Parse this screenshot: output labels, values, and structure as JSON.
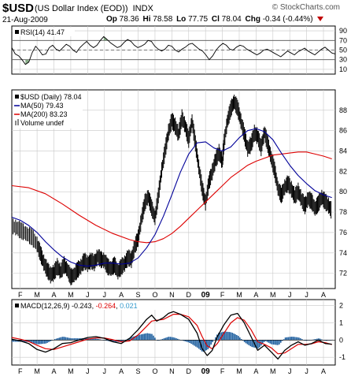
{
  "header": {
    "symbol": "$USD",
    "description": "(US Dollar Index (EOD))",
    "exchange": "INDX",
    "date": "21-Aug-2009",
    "brand": "© StockCharts.com",
    "open_label": "Op",
    "open": "78.36",
    "high_label": "Hi",
    "high": "78.58",
    "low_label": "Lo",
    "low": "77.75",
    "close_label": "Cl",
    "close": "78.04",
    "change_label": "Chg",
    "change": "-0.34 (-0.44%)"
  },
  "colors": {
    "price": "#000000",
    "ma50": "#000099",
    "ma200": "#dd0000",
    "macd": "#000000",
    "signal": "#dd0000",
    "histogram": "#2060a0",
    "rsi_fill": "#6a9a6a",
    "grid": "#c8c8c8"
  },
  "chart_data": [
    {
      "type": "line",
      "name": "RSI panel",
      "legend": "RSI(14) 41.47",
      "yticks": [
        10,
        30,
        50,
        70,
        90
      ],
      "ylim": [
        0,
        100
      ],
      "reference_lines": [
        30,
        50,
        70
      ],
      "values": [
        55,
        42,
        38,
        30,
        20,
        25,
        45,
        58,
        50,
        40,
        42,
        55,
        60,
        52,
        48,
        55,
        62,
        58,
        50,
        45,
        55,
        62,
        68,
        60,
        55,
        60,
        70,
        78,
        72,
        65,
        60,
        55,
        58,
        66,
        72,
        68,
        60,
        55,
        58,
        62,
        70,
        68,
        58,
        52,
        48,
        52,
        60,
        58,
        50,
        46,
        52,
        56,
        62,
        64,
        58,
        52,
        48,
        40,
        30,
        38,
        50,
        58,
        64,
        60,
        52,
        50,
        56,
        60,
        58,
        52,
        48,
        44,
        40,
        44,
        50,
        52,
        48,
        44,
        40,
        36,
        42,
        48,
        44,
        40,
        46,
        50,
        54,
        48,
        44,
        40,
        46,
        52,
        56,
        50,
        44,
        42
      ]
    },
    {
      "type": "line",
      "name": "Price panel",
      "legend_price": "$USD (Daily) 78.04",
      "legend_ma50": "MA(50) 79.43",
      "legend_ma200": "MA(200) 83.23",
      "legend_volume": "Volume undef",
      "yticks": [
        72,
        74,
        76,
        78,
        80,
        82,
        84,
        86,
        88
      ],
      "ylim": [
        70.5,
        90
      ],
      "x_labels": [
        "F",
        "M",
        "A",
        "M",
        "J",
        "J",
        "A",
        "S",
        "O",
        "N",
        "D",
        "09",
        "F",
        "M",
        "A",
        "M",
        "J",
        "J",
        "A"
      ],
      "x_positions": [
        0.5,
        1.5,
        2.5,
        3.5,
        4.5,
        5.5,
        6.5,
        7.5,
        8.5,
        9.5,
        10.5,
        11.5,
        12.5,
        13.5,
        14.5,
        15.5,
        16.5,
        17.5,
        18.5
      ],
      "x_range": [
        0,
        19.2
      ],
      "price": [
        [
          0.0,
          76.6
        ],
        [
          0.3,
          76.4
        ],
        [
          0.6,
          76.1
        ],
        [
          0.9,
          75.8
        ],
        [
          1.2,
          75.5
        ],
        [
          1.5,
          74.8
        ],
        [
          1.7,
          73.9
        ],
        [
          1.9,
          73.0
        ],
        [
          2.1,
          72.3
        ],
        [
          2.3,
          71.8
        ],
        [
          2.5,
          72.0
        ],
        [
          2.7,
          72.6
        ],
        [
          2.9,
          72.1
        ],
        [
          3.1,
          72.8
        ],
        [
          3.3,
          72.3
        ],
        [
          3.5,
          71.6
        ],
        [
          3.7,
          71.8
        ],
        [
          3.9,
          72.3
        ],
        [
          4.1,
          72.6
        ],
        [
          4.3,
          73.2
        ],
        [
          4.5,
          72.9
        ],
        [
          4.7,
          73.2
        ],
        [
          4.9,
          73.0
        ],
        [
          5.1,
          73.6
        ],
        [
          5.3,
          73.3
        ],
        [
          5.5,
          73.2
        ],
        [
          5.7,
          72.6
        ],
        [
          5.9,
          72.4
        ],
        [
          6.1,
          72.8
        ],
        [
          6.3,
          72.1
        ],
        [
          6.5,
          72.6
        ],
        [
          6.7,
          72.9
        ],
        [
          6.9,
          73.5
        ],
        [
          7.1,
          73.3
        ],
        [
          7.3,
          74.6
        ],
        [
          7.5,
          75.4
        ],
        [
          7.7,
          77.3
        ],
        [
          7.9,
          78.9
        ],
        [
          8.1,
          79.5
        ],
        [
          8.3,
          78.4
        ],
        [
          8.5,
          77.4
        ],
        [
          8.7,
          79.6
        ],
        [
          8.9,
          82.1
        ],
        [
          9.1,
          84.0
        ],
        [
          9.3,
          85.8
        ],
        [
          9.5,
          87.0
        ],
        [
          9.7,
          86.4
        ],
        [
          9.9,
          85.6
        ],
        [
          10.1,
          87.2
        ],
        [
          10.3,
          86.4
        ],
        [
          10.5,
          85.1
        ],
        [
          10.7,
          86.9
        ],
        [
          10.9,
          84.7
        ],
        [
          11.1,
          82.4
        ],
        [
          11.3,
          80.3
        ],
        [
          11.5,
          78.9
        ],
        [
          11.7,
          80.9
        ],
        [
          11.9,
          81.9
        ],
        [
          12.1,
          83.1
        ],
        [
          12.3,
          83.8
        ],
        [
          12.5,
          82.9
        ],
        [
          12.6,
          84.8
        ],
        [
          12.8,
          86.9
        ],
        [
          13.0,
          88.1
        ],
        [
          13.2,
          88.8
        ],
        [
          13.4,
          88.2
        ],
        [
          13.6,
          86.9
        ],
        [
          13.8,
          85.6
        ],
        [
          14.0,
          84.2
        ],
        [
          14.2,
          84.6
        ],
        [
          14.4,
          85.7
        ],
        [
          14.6,
          85.4
        ],
        [
          14.8,
          84.3
        ],
        [
          15.0,
          85.8
        ],
        [
          15.2,
          84.6
        ],
        [
          15.4,
          83.3
        ],
        [
          15.6,
          82.1
        ],
        [
          15.8,
          80.3
        ],
        [
          16.0,
          79.6
        ],
        [
          16.2,
          80.4
        ],
        [
          16.4,
          80.8
        ],
        [
          16.6,
          80.2
        ],
        [
          16.8,
          79.5
        ],
        [
          17.0,
          80.0
        ],
        [
          17.2,
          79.2
        ],
        [
          17.4,
          78.6
        ],
        [
          17.6,
          79.3
        ],
        [
          17.8,
          79.0
        ],
        [
          18.0,
          78.3
        ],
        [
          18.2,
          78.8
        ],
        [
          18.4,
          79.4
        ],
        [
          18.6,
          79.0
        ],
        [
          18.8,
          78.6
        ],
        [
          19.0,
          78.04
        ]
      ],
      "ma50": [
        [
          0.0,
          77.5
        ],
        [
          0.5,
          77.2
        ],
        [
          1.0,
          76.7
        ],
        [
          1.5,
          76.0
        ],
        [
          2.0,
          75.1
        ],
        [
          2.5,
          74.3
        ],
        [
          3.0,
          73.6
        ],
        [
          3.5,
          73.1
        ],
        [
          4.0,
          72.8
        ],
        [
          4.5,
          72.7
        ],
        [
          5.0,
          72.8
        ],
        [
          5.5,
          73.0
        ],
        [
          6.0,
          73.0
        ],
        [
          6.5,
          72.9
        ],
        [
          7.0,
          73.0
        ],
        [
          7.5,
          73.5
        ],
        [
          8.0,
          74.5
        ],
        [
          8.5,
          75.8
        ],
        [
          9.0,
          77.6
        ],
        [
          9.5,
          79.7
        ],
        [
          10.0,
          81.9
        ],
        [
          10.5,
          83.7
        ],
        [
          11.0,
          84.8
        ],
        [
          11.5,
          84.9
        ],
        [
          12.0,
          84.3
        ],
        [
          12.5,
          84.0
        ],
        [
          13.0,
          84.4
        ],
        [
          13.5,
          85.3
        ],
        [
          14.0,
          86.0
        ],
        [
          14.5,
          86.2
        ],
        [
          15.0,
          85.9
        ],
        [
          15.5,
          85.1
        ],
        [
          16.0,
          83.8
        ],
        [
          16.5,
          82.6
        ],
        [
          17.0,
          81.6
        ],
        [
          17.5,
          80.8
        ],
        [
          18.0,
          80.1
        ],
        [
          18.5,
          79.7
        ],
        [
          19.0,
          79.43
        ]
      ],
      "ma200": [
        [
          0.0,
          80.6
        ],
        [
          1.0,
          80.4
        ],
        [
          2.0,
          79.8
        ],
        [
          3.0,
          78.8
        ],
        [
          4.0,
          77.7
        ],
        [
          5.0,
          76.7
        ],
        [
          6.0,
          75.9
        ],
        [
          7.0,
          75.3
        ],
        [
          7.5,
          75.1
        ],
        [
          8.0,
          75.0
        ],
        [
          8.5,
          75.1
        ],
        [
          9.0,
          75.4
        ],
        [
          9.5,
          75.9
        ],
        [
          10.0,
          76.6
        ],
        [
          10.5,
          77.4
        ],
        [
          11.0,
          78.2
        ],
        [
          11.5,
          79.0
        ],
        [
          12.0,
          79.8
        ],
        [
          12.5,
          80.6
        ],
        [
          13.0,
          81.4
        ],
        [
          13.5,
          82.0
        ],
        [
          14.0,
          82.6
        ],
        [
          14.5,
          83.0
        ],
        [
          15.0,
          83.3
        ],
        [
          15.5,
          83.6
        ],
        [
          16.0,
          83.7
        ],
        [
          16.5,
          83.8
        ],
        [
          17.0,
          83.9
        ],
        [
          17.5,
          83.9
        ],
        [
          18.0,
          83.7
        ],
        [
          18.5,
          83.5
        ],
        [
          19.0,
          83.23
        ]
      ]
    },
    {
      "type": "line",
      "name": "MACD panel",
      "legend_macd": "MACD(12,26,9)",
      "legend_macd_value": "-0.243",
      "legend_signal_value": "-0.264",
      "legend_hist_value": "0.021",
      "yticks": [
        -1,
        0,
        1,
        2
      ],
      "ylim": [
        -1.45,
        2.35
      ],
      "x_labels": [
        "F",
        "M",
        "A",
        "M",
        "J",
        "J",
        "A",
        "S",
        "O",
        "N",
        "D",
        "09",
        "F",
        "M",
        "A",
        "M",
        "J",
        "J",
        "A"
      ],
      "macd": [
        [
          0.0,
          0.05
        ],
        [
          0.5,
          -0.05
        ],
        [
          1.0,
          -0.2
        ],
        [
          1.5,
          -0.55
        ],
        [
          2.0,
          -0.7
        ],
        [
          2.5,
          -0.5
        ],
        [
          3.0,
          -0.2
        ],
        [
          3.5,
          -0.15
        ],
        [
          4.0,
          0.0
        ],
        [
          4.5,
          0.15
        ],
        [
          5.0,
          0.2
        ],
        [
          5.5,
          0.1
        ],
        [
          6.0,
          -0.1
        ],
        [
          6.5,
          -0.2
        ],
        [
          7.0,
          0.1
        ],
        [
          7.5,
          0.6
        ],
        [
          8.0,
          1.2
        ],
        [
          8.3,
          1.45
        ],
        [
          8.6,
          1.1
        ],
        [
          9.0,
          1.3
        ],
        [
          9.3,
          1.55
        ],
        [
          9.6,
          1.65
        ],
        [
          10.0,
          1.5
        ],
        [
          10.5,
          1.2
        ],
        [
          11.0,
          0.4
        ],
        [
          11.3,
          -0.5
        ],
        [
          11.6,
          -0.9
        ],
        [
          11.9,
          -0.6
        ],
        [
          12.2,
          0.2
        ],
        [
          12.6,
          0.9
        ],
        [
          13.0,
          1.45
        ],
        [
          13.4,
          1.55
        ],
        [
          13.8,
          1.0
        ],
        [
          14.2,
          0.2
        ],
        [
          14.6,
          -0.6
        ],
        [
          15.0,
          -0.3
        ],
        [
          15.4,
          -0.7
        ],
        [
          15.8,
          -1.1
        ],
        [
          16.2,
          -0.6
        ],
        [
          16.6,
          -0.3
        ],
        [
          17.0,
          -0.1
        ],
        [
          17.4,
          -0.3
        ],
        [
          17.8,
          -0.2
        ],
        [
          18.2,
          0.0
        ],
        [
          18.6,
          -0.2
        ],
        [
          19.0,
          -0.243
        ]
      ],
      "signal": [
        [
          0.0,
          0.15
        ],
        [
          0.5,
          0.05
        ],
        [
          1.0,
          -0.08
        ],
        [
          1.5,
          -0.3
        ],
        [
          2.0,
          -0.5
        ],
        [
          2.5,
          -0.55
        ],
        [
          3.0,
          -0.4
        ],
        [
          3.5,
          -0.25
        ],
        [
          4.0,
          -0.1
        ],
        [
          4.5,
          0.05
        ],
        [
          5.0,
          0.12
        ],
        [
          5.5,
          0.12
        ],
        [
          6.0,
          0.02
        ],
        [
          6.5,
          -0.1
        ],
        [
          7.0,
          -0.05
        ],
        [
          7.5,
          0.3
        ],
        [
          8.0,
          0.8
        ],
        [
          8.3,
          1.1
        ],
        [
          8.6,
          1.15
        ],
        [
          9.0,
          1.2
        ],
        [
          9.3,
          1.35
        ],
        [
          9.6,
          1.5
        ],
        [
          10.0,
          1.5
        ],
        [
          10.5,
          1.35
        ],
        [
          11.0,
          0.85
        ],
        [
          11.3,
          0.2
        ],
        [
          11.6,
          -0.35
        ],
        [
          11.9,
          -0.5
        ],
        [
          12.2,
          -0.2
        ],
        [
          12.6,
          0.4
        ],
        [
          13.0,
          1.0
        ],
        [
          13.4,
          1.3
        ],
        [
          13.8,
          1.15
        ],
        [
          14.2,
          0.6
        ],
        [
          14.6,
          -0.1
        ],
        [
          15.0,
          -0.25
        ],
        [
          15.4,
          -0.45
        ],
        [
          15.8,
          -0.8
        ],
        [
          16.2,
          -0.75
        ],
        [
          16.6,
          -0.5
        ],
        [
          17.0,
          -0.25
        ],
        [
          17.4,
          -0.25
        ],
        [
          17.8,
          -0.22
        ],
        [
          18.2,
          -0.1
        ],
        [
          18.6,
          -0.15
        ],
        [
          19.0,
          -0.264
        ]
      ]
    }
  ]
}
